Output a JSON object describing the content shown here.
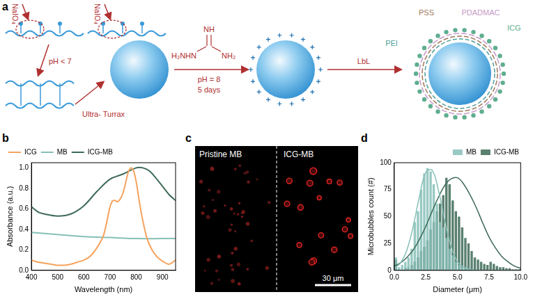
{
  "diagram": {
    "label": "a",
    "reagent_labels": [
      "NaIO₄",
      "NaIO₄"
    ],
    "step1": "pH < 7",
    "step2": "Ultra- Turrax",
    "guanidine": {
      "top": "NH",
      "left": "H₂NHN",
      "right": "NH₂"
    },
    "step3": [
      "pH = 8",
      "5 days"
    ],
    "step4": "LbL",
    "layers": [
      "PSS",
      "PDADMAC",
      "ICG",
      "PEI"
    ]
  },
  "image": {
    "label": "c",
    "left_title": "Pristine MB",
    "right_title": "ICG-MB",
    "scale_bar": "30 μm"
  },
  "chart_data": [
    {
      "label": "b",
      "type": "line",
      "x_label": "Wavelength (nm)",
      "y_label": "Absorbance (a.u.)",
      "xlim": [
        400,
        950
      ],
      "xticks": [
        400,
        500,
        600,
        700,
        800,
        900
      ],
      "ylim": [
        0,
        1.05
      ],
      "yticks": [
        {
          "value": 0,
          "label": "0.0"
        },
        {
          "value": 0.2,
          "label": "0.2"
        },
        {
          "value": 0.4,
          "label": "0.4"
        },
        {
          "value": 0.6,
          "label": "0.6"
        },
        {
          "value": 0.8,
          "label": "0.8"
        },
        {
          "value": 1,
          "label": "1.0"
        }
      ],
      "legend": "top-left",
      "series": [
        {
          "name": "ICG",
          "color": "#f5a25d",
          "x": [
            400,
            425,
            450,
            475,
            500,
            525,
            550,
            575,
            600,
            625,
            650,
            675,
            700,
            710,
            720,
            730,
            740,
            750,
            760,
            770,
            780,
            790,
            800,
            810,
            820,
            840,
            860,
            880,
            900,
            925,
            950
          ],
          "values": [
            0.1,
            0.08,
            0.07,
            0.06,
            0.05,
            0.05,
            0.06,
            0.08,
            0.1,
            0.14,
            0.22,
            0.34,
            0.62,
            0.68,
            0.68,
            0.67,
            0.7,
            0.76,
            0.86,
            0.96,
            1.0,
            0.97,
            0.86,
            0.7,
            0.55,
            0.32,
            0.2,
            0.13,
            0.09,
            0.06,
            0.1
          ]
        },
        {
          "name": "MB",
          "color": "#86c0b8",
          "x": [
            400,
            500,
            600,
            700,
            800,
            900,
            950
          ],
          "values": [
            0.37,
            0.35,
            0.33,
            0.32,
            0.31,
            0.31,
            0.31
          ]
        },
        {
          "name": "ICG-MB",
          "color": "#3d6a57",
          "x": [
            400,
            425,
            450,
            500,
            550,
            600,
            650,
            700,
            750,
            800,
            825,
            850,
            875,
            900,
            925,
            950
          ],
          "values": [
            0.62,
            0.57,
            0.55,
            0.53,
            0.55,
            0.63,
            0.77,
            0.89,
            0.94,
            1.0,
            1.0,
            0.97,
            0.9,
            0.82,
            0.74,
            0.68
          ]
        }
      ]
    },
    {
      "label": "d",
      "type": "histogram",
      "x_label": "Diameter (μm)",
      "y_label": "Microbubbles count (#)",
      "xlim": [
        0,
        10
      ],
      "xticks": [
        {
          "value": 0,
          "label": "0.0"
        },
        {
          "value": 2.5,
          "label": "2.5"
        },
        {
          "value": 5,
          "label": "5.0"
        },
        {
          "value": 7.5,
          "label": "7.5"
        },
        {
          "value": 10,
          "label": "10.0"
        }
      ],
      "ylim": [
        0,
        100
      ],
      "yticks": [
        0,
        25,
        50,
        75,
        100
      ],
      "legend": "top-right",
      "bins": [
        0,
        0.25,
        0.5,
        0.75,
        1,
        1.25,
        1.5,
        1.75,
        2,
        2.25,
        2.5,
        2.75,
        3,
        3.25,
        3.5,
        3.75,
        4,
        4.25,
        4.5,
        4.75,
        5,
        5.25,
        5.5,
        5.75,
        6,
        6.25,
        6.5,
        6.75,
        7,
        7.25,
        7.5,
        7.75,
        8,
        8.25,
        8.5,
        8.75,
        9,
        9.25,
        9.5,
        9.75,
        10
      ],
      "series": [
        {
          "name": "MB",
          "color": "#86c0b8",
          "values": [
            12,
            3,
            5,
            8,
            12,
            20,
            45,
            55,
            75,
            90,
            95,
            92,
            80,
            62,
            45,
            40,
            30,
            20,
            14,
            8,
            5,
            3,
            2,
            1,
            0,
            0,
            0,
            0,
            0,
            0,
            0,
            0,
            0,
            0,
            0,
            0,
            0,
            0,
            0,
            0
          ],
          "fit": {
            "x": [
              0,
              0.5,
              1,
              1.5,
              2,
              2.5,
              3,
              3.5,
              4,
              4.5,
              5,
              5.5,
              6,
              6.5,
              7,
              7.5,
              8,
              8.5,
              9,
              9.5,
              10
            ],
            "values": [
              2,
              7,
              19,
              41,
              69,
              91,
              93,
              74,
              46,
              22,
              8,
              3,
              1,
              0,
              0,
              0,
              0,
              0,
              0,
              0,
              0
            ]
          }
        },
        {
          "name": "ICG-MB",
          "color": "#3d6a57",
          "values": [
            10,
            0,
            0,
            2,
            3,
            5,
            8,
            12,
            18,
            22,
            28,
            38,
            45,
            55,
            62,
            70,
            86,
            80,
            65,
            55,
            50,
            40,
            30,
            25,
            18,
            12,
            10,
            8,
            6,
            5,
            8,
            6,
            4,
            3,
            3,
            2,
            2,
            1,
            1,
            1
          ],
          "fit": {
            "x": [
              0,
              0.5,
              1,
              1.5,
              2,
              2.5,
              3,
              3.5,
              4,
              4.5,
              5,
              5.5,
              6,
              6.5,
              7,
              7.5,
              8,
              8.5,
              9,
              9.5,
              10
            ],
            "values": [
              4,
              7,
              12,
              19,
              29,
              41,
              55,
              68,
              79,
              85,
              86,
              80,
              70,
              58,
              44,
              31,
              21,
              13,
              8,
              4,
              2
            ]
          }
        }
      ]
    }
  ]
}
